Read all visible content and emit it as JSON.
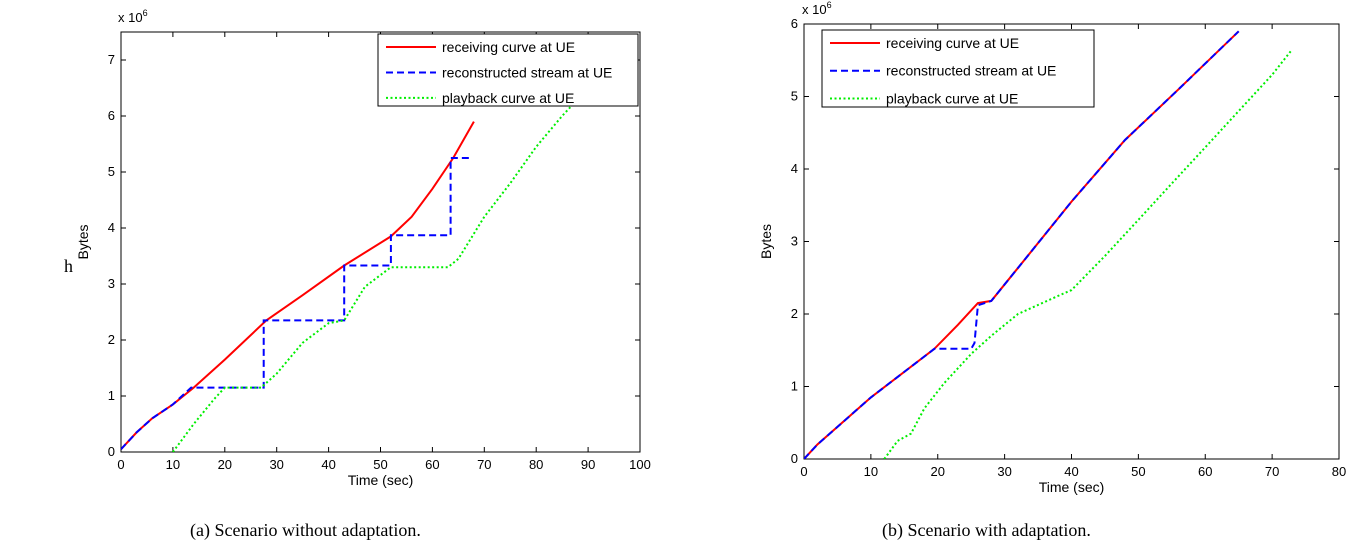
{
  "stray_text": "h",
  "captions": {
    "a": "(a) Scenario without adaptation.",
    "b": "(b) Scenario with adaptation."
  },
  "colors": {
    "receiving": "#ff0000",
    "reconstructed": "#0000ff",
    "playback": "#00ee00"
  },
  "chart_data": [
    {
      "type": "line",
      "title": "",
      "xlabel": "Time (sec)",
      "ylabel": "Bytes",
      "y_multiplier": "x 10^6",
      "xlim": [
        0,
        100
      ],
      "ylim": [
        0,
        7.5
      ],
      "xticks": [
        0,
        10,
        20,
        30,
        40,
        50,
        60,
        70,
        80,
        90,
        100
      ],
      "yticks": [
        0,
        1,
        2,
        3,
        4,
        5,
        6,
        7
      ],
      "legend_position": "top-right",
      "series": [
        {
          "name": "receiving curve at UE",
          "style": "solid",
          "color": "#ff0000",
          "x": [
            0,
            3,
            6,
            10,
            14,
            20,
            28,
            35,
            43,
            52,
            56,
            60,
            64,
            68
          ],
          "y": [
            0.05,
            0.35,
            0.6,
            0.85,
            1.15,
            1.65,
            2.35,
            2.8,
            3.33,
            3.85,
            4.2,
            4.7,
            5.25,
            5.9
          ]
        },
        {
          "name": "reconstructed stream at UE",
          "style": "dashed",
          "color": "#0000ff",
          "x": [
            0,
            3,
            6,
            10,
            13.5,
            13.5,
            27.5,
            27.5,
            43,
            43,
            52,
            52,
            63.5,
            63.5,
            67.5
          ],
          "y": [
            0.05,
            0.35,
            0.6,
            0.85,
            1.15,
            1.15,
            1.15,
            2.35,
            2.35,
            3.33,
            3.33,
            3.87,
            3.87,
            5.25,
            5.25
          ]
        },
        {
          "name": "playback curve at UE",
          "style": "dotted",
          "color": "#00ee00",
          "x": [
            10,
            14,
            18,
            20,
            27,
            30,
            35,
            40,
            43,
            47,
            52,
            63,
            65,
            70,
            75,
            80,
            85,
            88
          ],
          "y": [
            0,
            0.5,
            0.95,
            1.15,
            1.15,
            1.4,
            1.95,
            2.3,
            2.35,
            2.95,
            3.3,
            3.3,
            3.45,
            4.2,
            4.8,
            5.45,
            6.0,
            6.3
          ]
        }
      ]
    },
    {
      "type": "line",
      "title": "",
      "xlabel": "Time (sec)",
      "ylabel": "Bytes",
      "y_multiplier": "x 10^6",
      "xlim": [
        0,
        80
      ],
      "ylim": [
        0,
        6
      ],
      "xticks": [
        0,
        10,
        20,
        30,
        40,
        50,
        60,
        70,
        80
      ],
      "yticks": [
        0,
        1,
        2,
        3,
        4,
        5,
        6
      ],
      "legend_position": "top-left",
      "series": [
        {
          "name": "receiving curve at UE",
          "style": "solid",
          "color": "#ff0000",
          "x": [
            0,
            2,
            10,
            19.5,
            23,
            26,
            28,
            33,
            40,
            48,
            56,
            65
          ],
          "y": [
            0,
            0.2,
            0.85,
            1.52,
            1.85,
            2.15,
            2.18,
            2.75,
            3.55,
            4.4,
            5.1,
            5.9
          ]
        },
        {
          "name": "reconstructed stream at UE",
          "style": "dashed",
          "color": "#0000ff",
          "x": [
            0,
            2,
            10,
            19.5,
            25,
            25.5,
            26,
            28,
            33,
            40,
            48,
            56,
            65
          ],
          "y": [
            0,
            0.2,
            0.85,
            1.52,
            1.52,
            1.6,
            2.12,
            2.18,
            2.75,
            3.55,
            4.4,
            5.1,
            5.9
          ]
        },
        {
          "name": "playback curve at UE",
          "style": "dotted",
          "color": "#00ee00",
          "x": [
            12,
            14,
            16,
            18,
            21,
            25,
            28,
            32,
            38,
            40,
            45,
            50,
            55,
            60,
            65,
            70,
            73
          ],
          "y": [
            0,
            0.25,
            0.35,
            0.7,
            1.05,
            1.45,
            1.7,
            2.0,
            2.25,
            2.33,
            2.8,
            3.3,
            3.8,
            4.3,
            4.8,
            5.3,
            5.65
          ]
        }
      ]
    }
  ]
}
